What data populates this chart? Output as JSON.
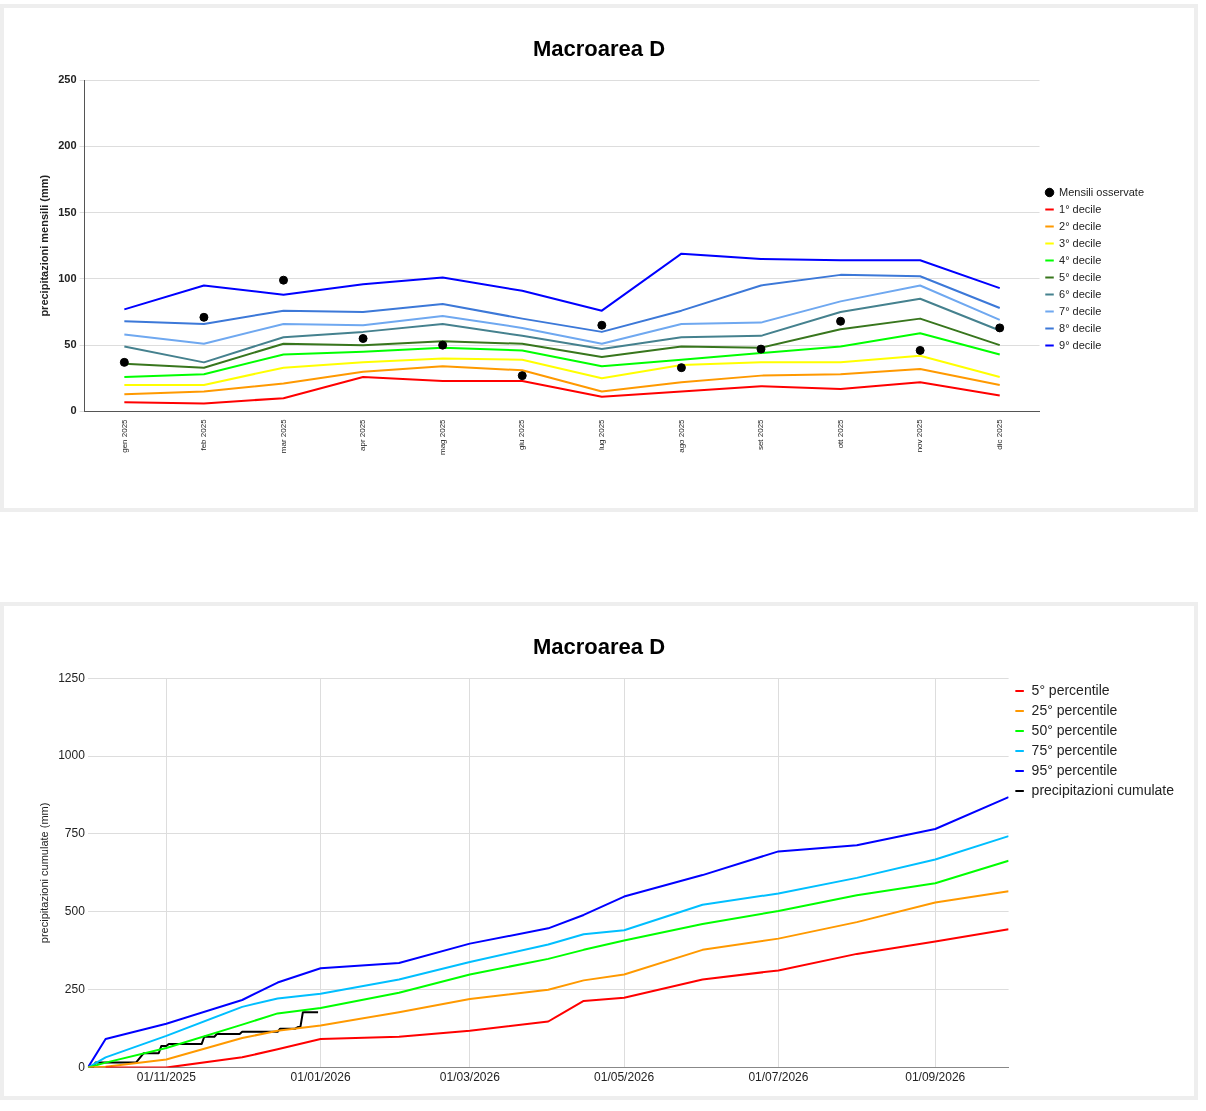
{
  "chart_data": [
    {
      "type": "line",
      "title": "Macroarea D",
      "ylabel": "precipitazioni mensili (mm)",
      "categories": [
        "gen 2025",
        "feb 2025",
        "mar 2025",
        "apr 2025",
        "mag 2025",
        "giu 2025",
        "lug 2025",
        "ago 2025",
        "set 2025",
        "ott 2025",
        "nov 2025",
        "dic 2025"
      ],
      "series": [
        {
          "name": "Mensili osservate",
          "type": "scatter",
          "color": "#000000",
          "values": [
            37,
            71,
            99,
            55,
            50,
            27,
            65,
            33,
            47,
            68,
            46,
            63
          ]
        },
        {
          "name": "1° decile",
          "color": "#ff0000",
          "values": [
            7,
            6,
            10,
            26,
            23,
            23,
            11,
            15,
            19,
            17,
            22,
            12
          ]
        },
        {
          "name": "2° decile",
          "color": "#ff9900",
          "values": [
            13,
            15,
            21,
            30,
            34,
            31,
            15,
            22,
            27,
            28,
            32,
            20
          ]
        },
        {
          "name": "3° decile",
          "color": "#ffff00",
          "values": [
            20,
            20,
            33,
            37,
            40,
            39,
            25,
            35,
            37,
            37,
            42,
            26
          ]
        },
        {
          "name": "4° decile",
          "color": "#00ff00",
          "values": [
            26,
            28,
            43,
            45,
            48,
            46,
            34,
            39,
            44,
            49,
            59,
            43
          ]
        },
        {
          "name": "5° decile",
          "color": "#38761d",
          "values": [
            36,
            33,
            51,
            50,
            53,
            51,
            41,
            49,
            48,
            62,
            70,
            50
          ]
        },
        {
          "name": "6° decile",
          "color": "#45818e",
          "values": [
            49,
            37,
            56,
            60,
            66,
            57,
            47,
            56,
            57,
            75,
            85,
            61
          ]
        },
        {
          "name": "7° decile",
          "color": "#6fa8f0",
          "values": [
            58,
            51,
            66,
            65,
            72,
            63,
            51,
            66,
            67,
            83,
            95,
            69
          ]
        },
        {
          "name": "8° decile",
          "color": "#3c78d8",
          "values": [
            68,
            66,
            76,
            75,
            81,
            70,
            60,
            76,
            95,
            103,
            102,
            78
          ]
        },
        {
          "name": "9° decile",
          "color": "#0000ff",
          "values": [
            77,
            95,
            88,
            96,
            101,
            91,
            76,
            119,
            115,
            114,
            114,
            93
          ]
        }
      ],
      "ylim": [
        0,
        250
      ],
      "yticks": [
        0,
        50,
        100,
        150,
        200,
        250
      ],
      "grid": "y",
      "legend": "right"
    },
    {
      "type": "line",
      "title": "Macroarea D",
      "ylabel": "precipitazioni cumulate (mm)",
      "xlim": [
        "2025-10-01",
        "2026-09-30"
      ],
      "xticks": [
        {
          "value": "2025-11-01",
          "label": "01/11/2025"
        },
        {
          "value": "2026-01-01",
          "label": "01/01/2026"
        },
        {
          "value": "2026-03-01",
          "label": "01/03/2026"
        },
        {
          "value": "2026-05-01",
          "label": "01/05/2026"
        },
        {
          "value": "2026-07-01",
          "label": "01/07/2026"
        },
        {
          "value": "2026-09-01",
          "label": "01/09/2026"
        }
      ],
      "ylim": [
        0,
        1250
      ],
      "yticks": [
        0,
        250,
        500,
        750,
        1000,
        1250
      ],
      "series": [
        {
          "name": "5° percentile",
          "color": "#ff0000",
          "x": [
            "2025-10-08",
            "2025-11-01",
            "2025-12-01",
            "2025-12-15",
            "2026-01-01",
            "2026-02-01",
            "2026-03-01",
            "2026-04-01",
            "2026-04-15",
            "2026-05-01",
            "2026-06-01",
            "2026-07-01",
            "2026-08-01",
            "2026-09-01",
            "2026-09-30"
          ],
          "values": [
            0,
            0,
            33,
            59,
            92,
            99,
            118,
            148,
            214,
            224,
            283,
            312,
            365,
            405,
            444
          ]
        },
        {
          "name": "25° percentile",
          "color": "#ff9900",
          "x": [
            "2025-10-01",
            "2025-10-08",
            "2025-11-01",
            "2025-12-01",
            "2025-12-15",
            "2026-01-01",
            "2026-02-01",
            "2026-03-01",
            "2026-04-01",
            "2026-04-15",
            "2026-05-01",
            "2026-06-01",
            "2026-07-01",
            "2026-08-01",
            "2026-09-01",
            "2026-09-30"
          ],
          "values": [
            0,
            3,
            26,
            95,
            118,
            135,
            178,
            220,
            250,
            280,
            299,
            378,
            414,
            467,
            530,
            566
          ]
        },
        {
          "name": "50° percentile",
          "color": "#00ff00",
          "x": [
            "2025-10-01",
            "2025-10-08",
            "2025-11-01",
            "2025-12-01",
            "2025-12-15",
            "2026-01-01",
            "2026-02-01",
            "2026-03-01",
            "2026-04-01",
            "2026-04-15",
            "2026-05-01",
            "2026-06-01",
            "2026-07-01",
            "2026-08-01",
            "2026-09-01",
            "2026-09-30"
          ],
          "values": [
            0,
            16,
            63,
            138,
            174,
            191,
            240,
            299,
            349,
            378,
            408,
            461,
            503,
            553,
            592,
            664
          ]
        },
        {
          "name": "75° percentile",
          "color": "#00bfff",
          "x": [
            "2025-10-01",
            "2025-10-08",
            "2025-11-01",
            "2025-12-01",
            "2025-12-15",
            "2026-01-01",
            "2026-02-01",
            "2026-03-01",
            "2026-04-01",
            "2026-04-15",
            "2026-05-01",
            "2026-06-01",
            "2026-07-01",
            "2026-08-01",
            "2026-09-01",
            "2026-09-30"
          ],
          "values": [
            0,
            33,
            102,
            195,
            222,
            237,
            283,
            339,
            395,
            428,
            441,
            523,
            559,
            609,
            668,
            743
          ]
        },
        {
          "name": "95° percentile",
          "color": "#0000ff",
          "x": [
            "2025-10-01",
            "2025-10-08",
            "2025-11-01",
            "2025-12-01",
            "2025-12-15",
            "2026-01-01",
            "2026-02-01",
            "2026-03-01",
            "2026-04-01",
            "2026-04-15",
            "2026-05-01",
            "2026-06-01",
            "2026-07-01",
            "2026-08-01",
            "2026-09-01",
            "2026-09-30"
          ],
          "values": [
            0,
            92,
            141,
            217,
            273,
            319,
            336,
            398,
            447,
            490,
            549,
            618,
            694,
            714,
            766,
            868
          ]
        },
        {
          "name": "precipitazioni cumulate",
          "color": "#000000",
          "x": [
            "2025-10-01",
            "2025-10-03",
            "2025-10-04",
            "2025-10-20",
            "2025-10-23",
            "2025-10-29",
            "2025-10-30",
            "2025-11-01",
            "2025-11-02",
            "2025-11-15",
            "2025-11-16",
            "2025-11-20",
            "2025-11-21",
            "2025-11-30",
            "2025-12-01",
            "2025-12-15",
            "2025-12-16",
            "2025-12-22",
            "2025-12-23",
            "2025-12-24",
            "2025-12-25",
            "2025-12-31"
          ],
          "values": [
            0,
            0,
            16,
            16,
            46,
            46,
            69,
            69,
            76,
            76,
            99,
            99,
            108,
            108,
            115,
            115,
            125,
            125,
            130,
            130,
            178,
            178
          ]
        }
      ],
      "grid": true,
      "legend": "top right"
    }
  ]
}
